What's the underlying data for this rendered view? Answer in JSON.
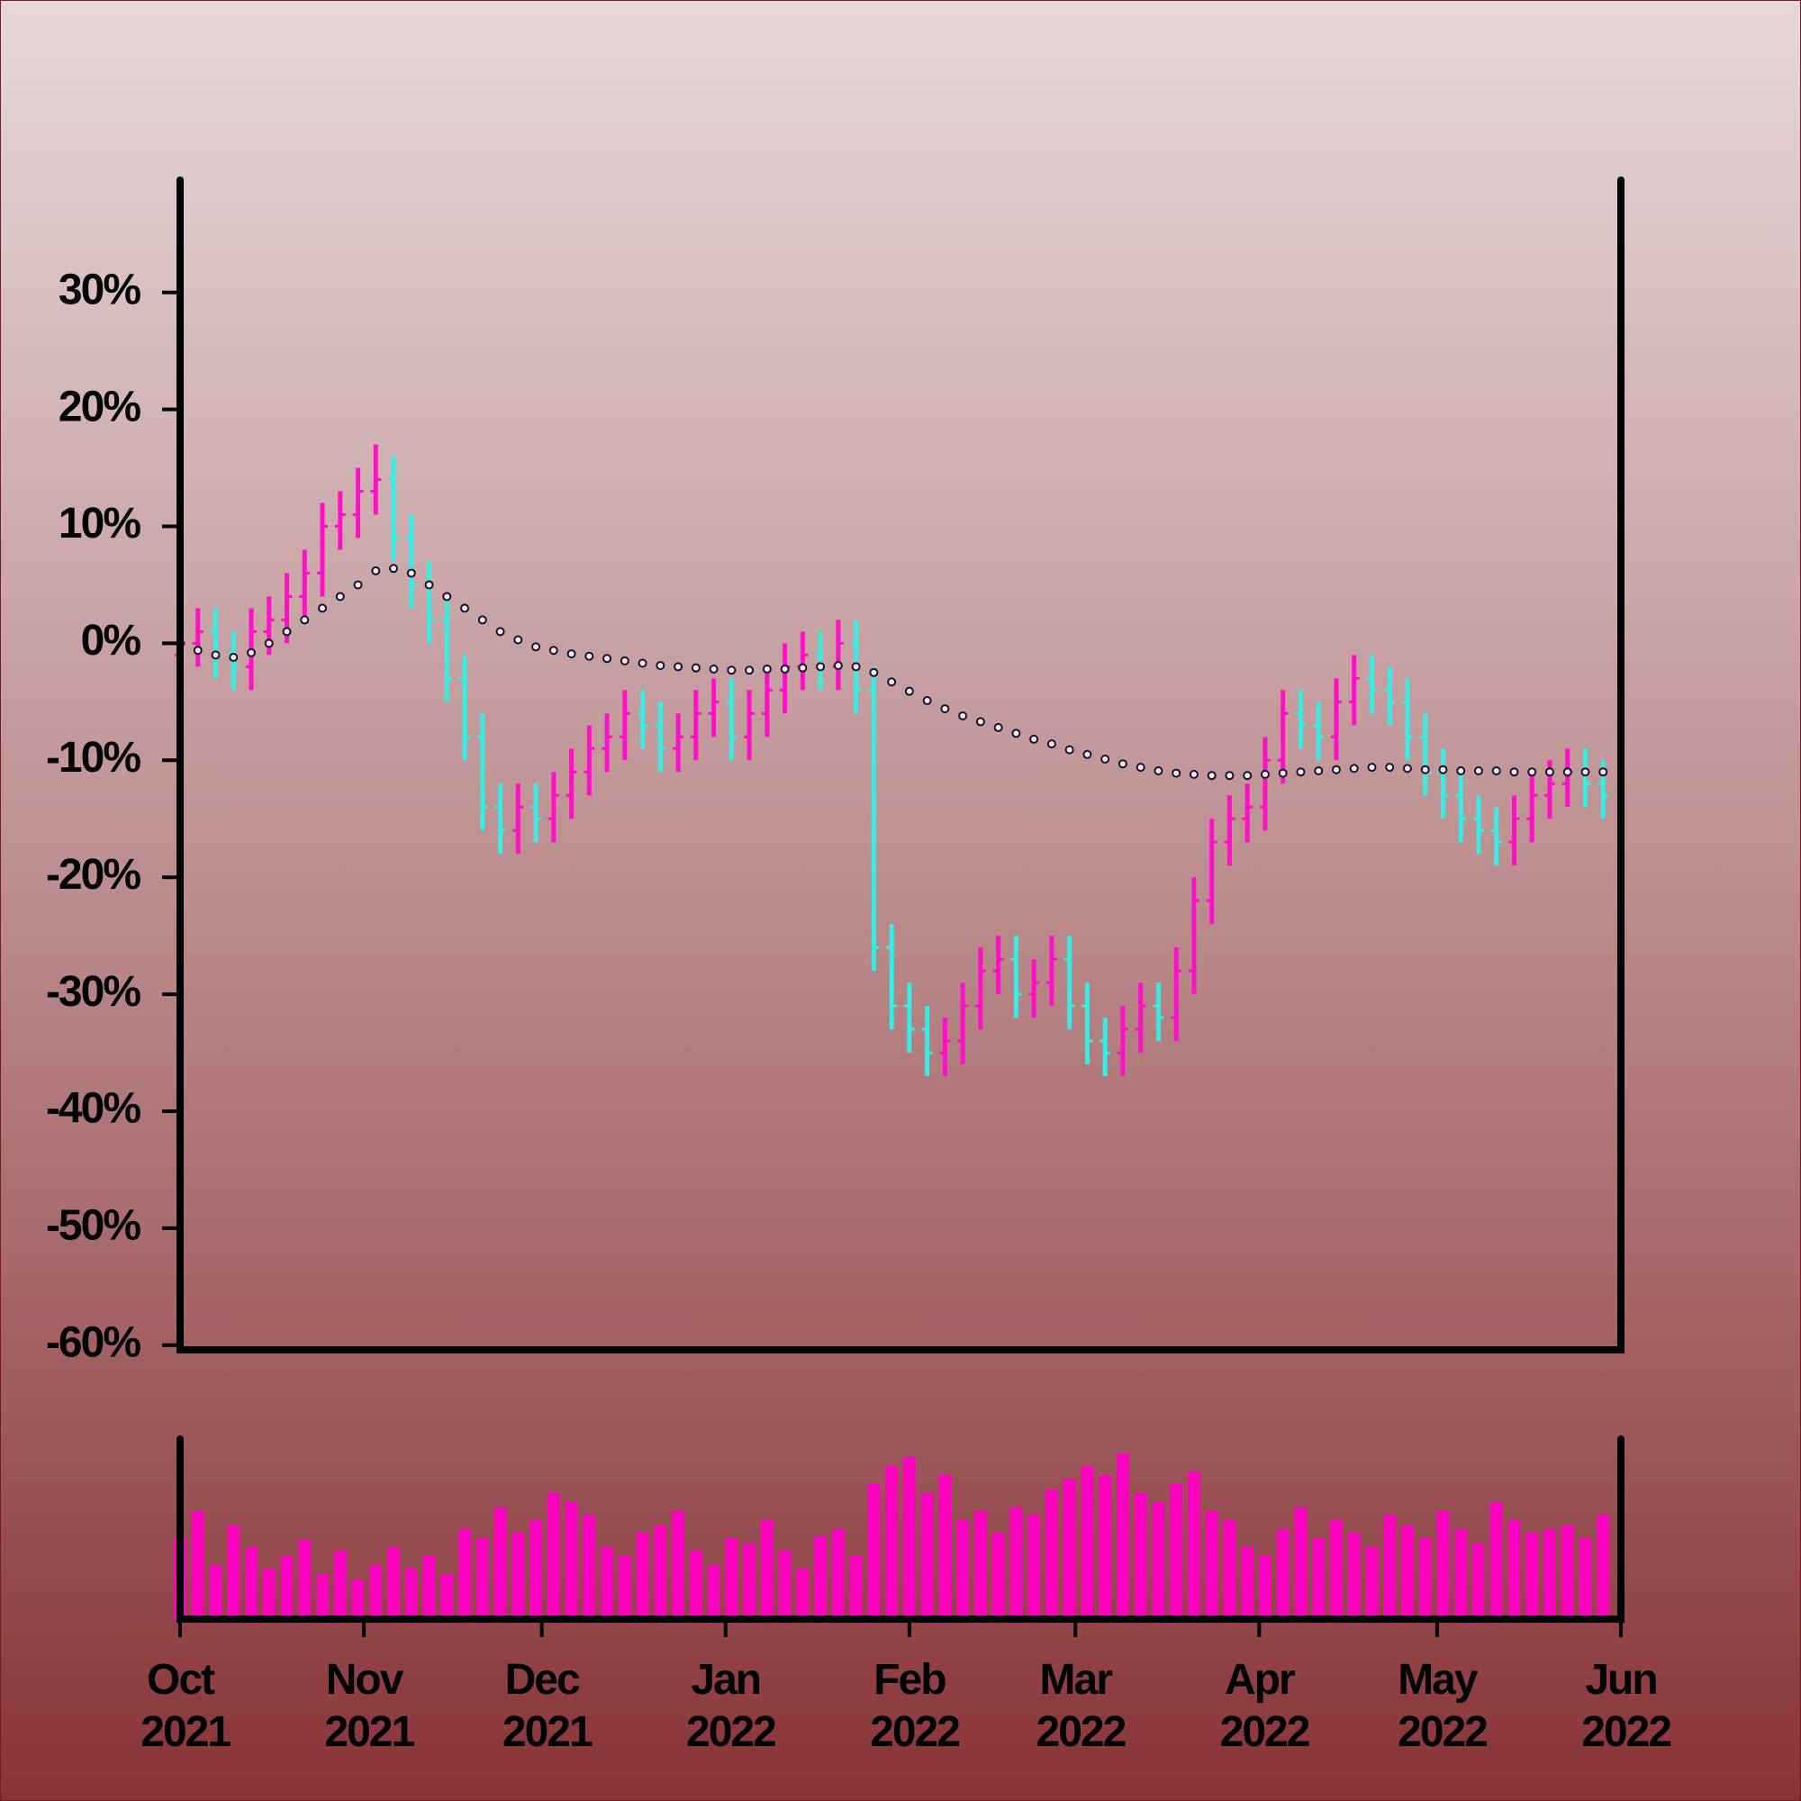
{
  "chart_data": [
    {
      "type": "ohlc",
      "x": [
        "2021-10-01",
        "2021-10-04",
        "2021-10-07",
        "2021-10-10",
        "2021-10-13",
        "2021-10-16",
        "2021-10-19",
        "2021-10-22",
        "2021-10-25",
        "2021-10-28",
        "2021-10-31",
        "2021-11-03",
        "2021-11-06",
        "2021-11-09",
        "2021-11-12",
        "2021-11-15",
        "2021-11-18",
        "2021-11-21",
        "2021-11-24",
        "2021-11-27",
        "2021-11-30",
        "2021-12-03",
        "2021-12-06",
        "2021-12-09",
        "2021-12-12",
        "2021-12-15",
        "2021-12-18",
        "2021-12-21",
        "2021-12-24",
        "2021-12-27",
        "2021-12-30",
        "2022-01-02",
        "2022-01-05",
        "2022-01-08",
        "2022-01-11",
        "2022-01-14",
        "2022-01-17",
        "2022-01-20",
        "2022-01-23",
        "2022-01-26",
        "2022-01-29",
        "2022-02-01",
        "2022-02-04",
        "2022-02-07",
        "2022-02-10",
        "2022-02-13",
        "2022-02-16",
        "2022-02-19",
        "2022-02-22",
        "2022-02-25",
        "2022-02-28",
        "2022-03-03",
        "2022-03-06",
        "2022-03-09",
        "2022-03-12",
        "2022-03-15",
        "2022-03-18",
        "2022-03-21",
        "2022-03-24",
        "2022-03-27",
        "2022-03-30",
        "2022-04-02",
        "2022-04-05",
        "2022-04-08",
        "2022-04-11",
        "2022-04-14",
        "2022-04-17",
        "2022-04-20",
        "2022-04-23",
        "2022-04-26",
        "2022-04-29",
        "2022-05-02",
        "2022-05-05",
        "2022-05-08",
        "2022-05-11",
        "2022-05-14",
        "2022-05-17",
        "2022-05-20",
        "2022-05-23",
        "2022-05-26",
        "2022-05-29"
      ],
      "open": [
        -1,
        0,
        1,
        -1,
        -2,
        1,
        2,
        4,
        6,
        10,
        11,
        13,
        14,
        9,
        5,
        2,
        -3,
        -8,
        -14,
        -16,
        -14,
        -15,
        -13,
        -11,
        -9,
        -8,
        -6,
        -7,
        -9,
        -8,
        -6,
        -5,
        -8,
        -6,
        -4,
        -2,
        -1,
        -2,
        0,
        -4,
        -26,
        -31,
        -33,
        -35,
        -34,
        -31,
        -28,
        -27,
        -30,
        -29,
        -27,
        -31,
        -34,
        -35,
        -33,
        -31,
        -32,
        -28,
        -22,
        -17,
        -15,
        -14,
        -10,
        -6,
        -7,
        -8,
        -5,
        -3,
        -4,
        -5,
        -8,
        -11,
        -13,
        -15,
        -16,
        -17,
        -15,
        -13,
        -12,
        -11,
        -12
      ],
      "high": [
        2,
        3,
        3,
        1,
        3,
        4,
        6,
        8,
        12,
        13,
        15,
        17,
        16,
        11,
        7,
        4,
        -1,
        -6,
        -12,
        -12,
        -12,
        -11,
        -9,
        -7,
        -6,
        -4,
        -4,
        -5,
        -6,
        -4,
        -3,
        -3,
        -4,
        -2,
        0,
        1,
        1,
        2,
        2,
        -2,
        -24,
        -29,
        -31,
        -32,
        -29,
        -26,
        -25,
        -25,
        -27,
        -25,
        -25,
        -29,
        -32,
        -31,
        -29,
        -29,
        -26,
        -20,
        -15,
        -13,
        -12,
        -8,
        -4,
        -4,
        -5,
        -3,
        -1,
        -1,
        -2,
        -3,
        -6,
        -9,
        -11,
        -13,
        -14,
        -13,
        -11,
        -10,
        -9,
        -9,
        -10
      ],
      "low": [
        -3,
        -2,
        -3,
        -4,
        -4,
        -1,
        0,
        2,
        4,
        8,
        9,
        11,
        7,
        3,
        0,
        -5,
        -10,
        -16,
        -18,
        -18,
        -17,
        -17,
        -15,
        -13,
        -11,
        -10,
        -9,
        -11,
        -11,
        -10,
        -8,
        -10,
        -10,
        -8,
        -6,
        -4,
        -4,
        -4,
        -6,
        -28,
        -33,
        -35,
        -37,
        -37,
        -36,
        -33,
        -30,
        -32,
        -32,
        -31,
        -33,
        -36,
        -37,
        -37,
        -35,
        -34,
        -34,
        -30,
        -24,
        -19,
        -17,
        -16,
        -12,
        -9,
        -10,
        -10,
        -7,
        -6,
        -7,
        -10,
        -13,
        -15,
        -17,
        -18,
        -19,
        -19,
        -17,
        -15,
        -14,
        -14,
        -15
      ],
      "close": [
        0,
        1,
        -1,
        -2,
        1,
        2,
        4,
        6,
        10,
        11,
        13,
        14,
        9,
        5,
        2,
        -3,
        -8,
        -14,
        -16,
        -14,
        -15,
        -13,
        -11,
        -9,
        -8,
        -6,
        -7,
        -9,
        -8,
        -6,
        -5,
        -8,
        -6,
        -4,
        -2,
        -1,
        -2,
        0,
        -4,
        -26,
        -31,
        -33,
        -35,
        -34,
        -31,
        -28,
        -27,
        -30,
        -29,
        -27,
        -31,
        -34,
        -35,
        -33,
        -31,
        -32,
        -28,
        -22,
        -17,
        -15,
        -14,
        -10,
        -6,
        -7,
        -8,
        -5,
        -3,
        -4,
        -5,
        -8,
        -11,
        -13,
        -15,
        -16,
        -17,
        -15,
        -13,
        -12,
        -11,
        -12,
        -13
      ],
      "up_color": "#ff10c8",
      "down_color": "#38ece4",
      "moving_average": {
        "color": "#1a1030",
        "values": [
          0,
          -0.6,
          -1.0,
          -1.2,
          -0.8,
          0,
          1,
          2,
          3,
          4,
          5,
          6.2,
          6.4,
          6,
          5,
          4,
          3,
          2,
          1,
          0.3,
          -0.3,
          -0.6,
          -0.9,
          -1.1,
          -1.3,
          -1.5,
          -1.7,
          -1.9,
          -2,
          -2.1,
          -2.2,
          -2.3,
          -2.3,
          -2.2,
          -2.2,
          -2.1,
          -2,
          -1.9,
          -2,
          -2.5,
          -3.3,
          -4.1,
          -4.9,
          -5.6,
          -6.2,
          -6.7,
          -7.2,
          -7.7,
          -8.2,
          -8.6,
          -9.1,
          -9.5,
          -9.9,
          -10.3,
          -10.6,
          -10.9,
          -11.1,
          -11.2,
          -11.3,
          -11.3,
          -11.3,
          -11.2,
          -11.1,
          -11,
          -10.9,
          -10.8,
          -10.7,
          -10.6,
          -10.6,
          -10.7,
          -10.8,
          -10.8,
          -10.9,
          -10.9,
          -10.9,
          -11,
          -11,
          -11,
          -11,
          -11,
          -11
        ]
      },
      "xlim": [
        "2021-10-01",
        "2022-06-01"
      ],
      "ylim": [
        -60.4,
        39.6
      ],
      "yticks": [
        {
          "value": -60,
          "label": "-60%"
        },
        {
          "value": -50,
          "label": "-50%"
        },
        {
          "value": -40,
          "label": "-40%"
        },
        {
          "value": -30,
          "label": "-30%"
        },
        {
          "value": -20,
          "label": "-20%"
        },
        {
          "value": -10,
          "label": "-10%"
        },
        {
          "value": 0,
          "label": "0%"
        },
        {
          "value": 10,
          "label": "10%"
        },
        {
          "value": 20,
          "label": "20%"
        },
        {
          "value": 30,
          "label": "30%"
        }
      ]
    },
    {
      "type": "bar",
      "x": [
        "2021-10-01",
        "2021-10-04",
        "2021-10-07",
        "2021-10-10",
        "2021-10-13",
        "2021-10-16",
        "2021-10-19",
        "2021-10-22",
        "2021-10-25",
        "2021-10-28",
        "2021-10-31",
        "2021-11-03",
        "2021-11-06",
        "2021-11-09",
        "2021-11-12",
        "2021-11-15",
        "2021-11-18",
        "2021-11-21",
        "2021-11-24",
        "2021-11-27",
        "2021-11-30",
        "2021-12-03",
        "2021-12-06",
        "2021-12-09",
        "2021-12-12",
        "2021-12-15",
        "2021-12-18",
        "2021-12-21",
        "2021-12-24",
        "2021-12-27",
        "2021-12-30",
        "2022-01-02",
        "2022-01-05",
        "2022-01-08",
        "2022-01-11",
        "2022-01-14",
        "2022-01-17",
        "2022-01-20",
        "2022-01-23",
        "2022-01-26",
        "2022-01-29",
        "2022-02-01",
        "2022-02-04",
        "2022-02-07",
        "2022-02-10",
        "2022-02-13",
        "2022-02-16",
        "2022-02-19",
        "2022-02-22",
        "2022-02-25",
        "2022-02-28",
        "2022-03-03",
        "2022-03-06",
        "2022-03-09",
        "2022-03-12",
        "2022-03-15",
        "2022-03-18",
        "2022-03-21",
        "2022-03-24",
        "2022-03-27",
        "2022-03-30",
        "2022-04-02",
        "2022-04-05",
        "2022-04-08",
        "2022-04-11",
        "2022-04-14",
        "2022-04-17",
        "2022-04-20",
        "2022-04-23",
        "2022-04-26",
        "2022-04-29",
        "2022-05-02",
        "2022-05-05",
        "2022-05-08",
        "2022-05-11",
        "2022-05-14",
        "2022-05-17",
        "2022-05-20",
        "2022-05-23",
        "2022-05-26",
        "2022-05-29"
      ],
      "values": [
        45,
        60,
        30,
        52,
        40,
        28,
        35,
        44,
        25,
        38,
        22,
        30,
        40,
        28,
        35,
        25,
        50,
        45,
        62,
        48,
        55,
        70,
        65,
        58,
        40,
        35,
        48,
        52,
        60,
        38,
        30,
        45,
        42,
        55,
        38,
        28,
        46,
        50,
        35,
        75,
        85,
        90,
        70,
        80,
        55,
        60,
        48,
        62,
        58,
        72,
        78,
        85,
        80,
        92,
        70,
        65,
        75,
        82,
        60,
        55,
        40,
        35,
        50,
        62,
        45,
        55,
        48,
        40,
        58,
        52,
        45,
        60,
        50,
        42,
        65,
        55,
        48,
        50,
        52,
        45,
        58
      ],
      "color": "#ff00c0",
      "ylim": [
        0,
        100
      ],
      "xlim": [
        "2021-10-01",
        "2022-06-01"
      ],
      "xticks": [
        {
          "value": "2021-10-01",
          "label": "Oct 2021"
        },
        {
          "value": "2021-11-01",
          "label": "Nov 2021"
        },
        {
          "value": "2021-12-01",
          "label": "Dec 2021"
        },
        {
          "value": "2022-01-01",
          "label": "Jan 2022"
        },
        {
          "value": "2022-02-01",
          "label": "Feb 2022"
        },
        {
          "value": "2022-03-01",
          "label": "Mar 2022"
        },
        {
          "value": "2022-04-01",
          "label": "Apr 2022"
        },
        {
          "value": "2022-05-01",
          "label": "May 2022"
        },
        {
          "value": "2022-06-01",
          "label": "Jun 2022"
        }
      ]
    }
  ]
}
